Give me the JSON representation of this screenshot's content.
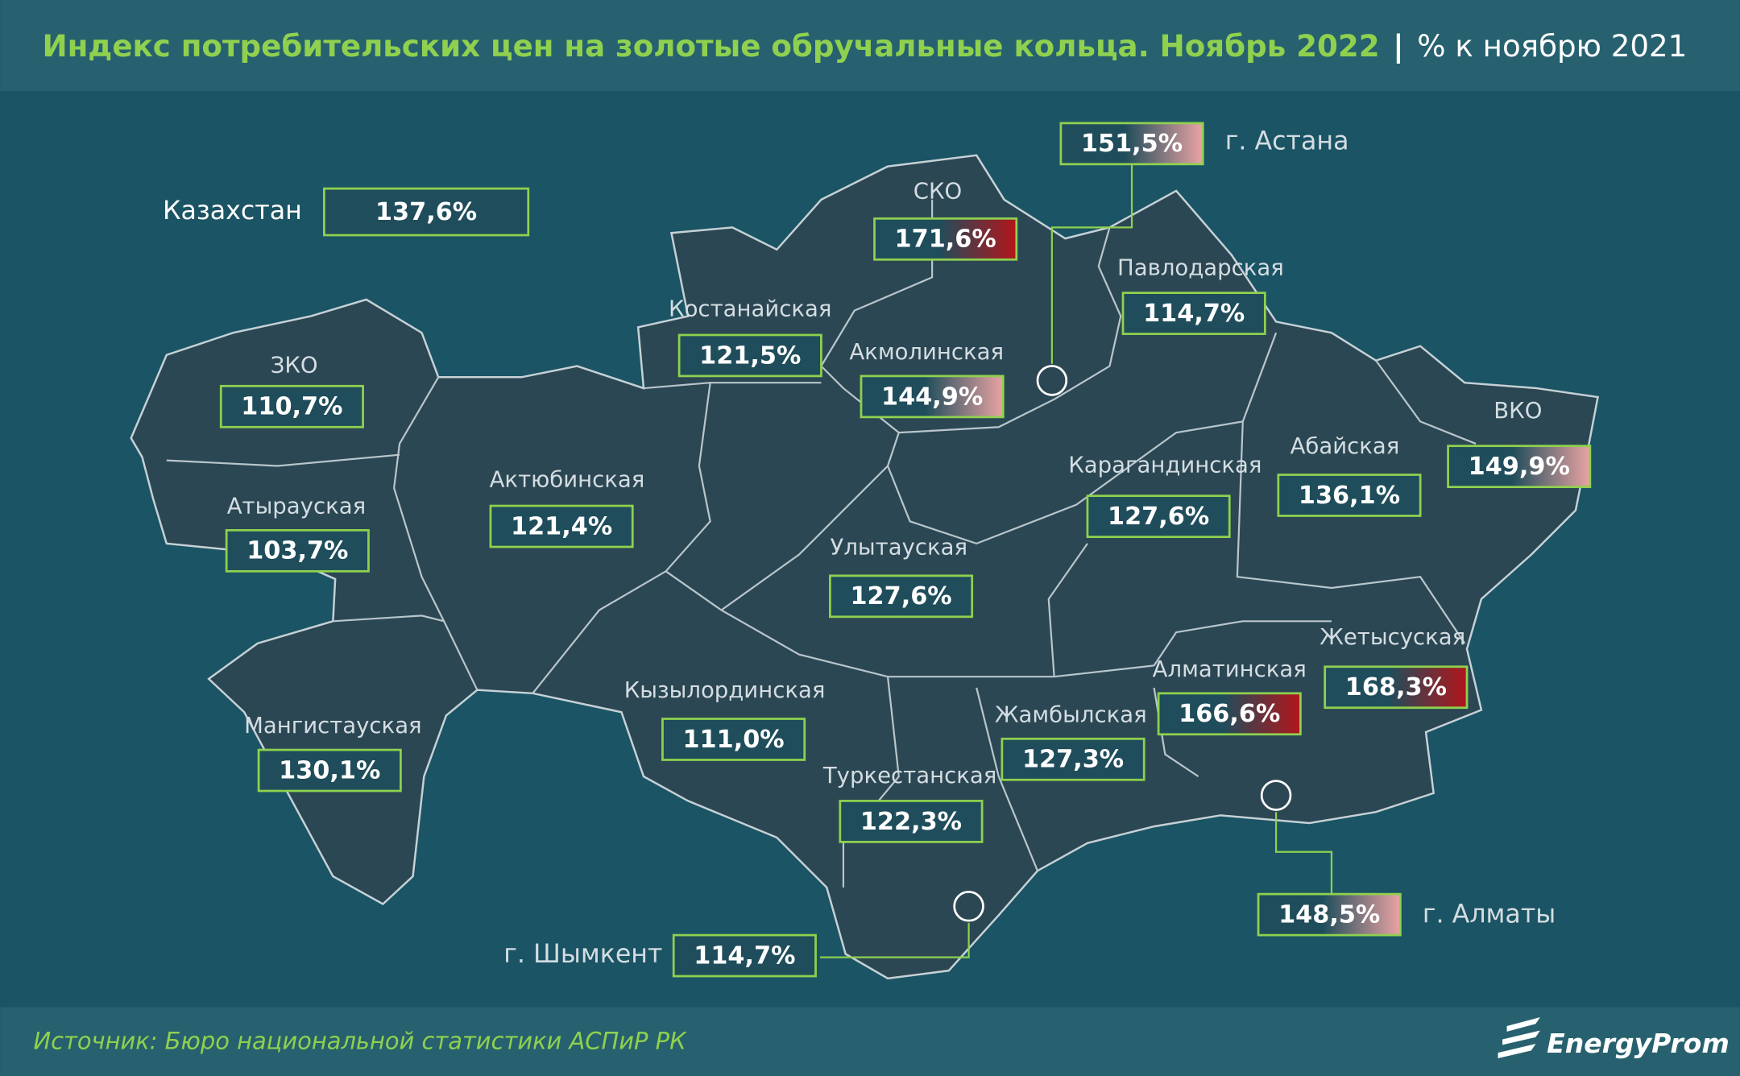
{
  "header": {
    "title": "Индекс потребительских цен на золотые обручальные кольца. Ноябрь 2022",
    "separator": "|",
    "subtitle": "% к ноябрю 2021"
  },
  "total": {
    "name": "Казахстан",
    "value": 137.6,
    "label": "137,6%"
  },
  "regions": [
    {
      "name": "ЗКО",
      "value": 110.7,
      "label": "110,7%"
    },
    {
      "name": "Атырауская",
      "value": 103.7,
      "label": "103,7%"
    },
    {
      "name": "Актюбинская",
      "value": 121.4,
      "label": "121,4%"
    },
    {
      "name": "Мангистауская",
      "value": 130.1,
      "label": "130,1%"
    },
    {
      "name": "Костанайская",
      "value": 121.5,
      "label": "121,5%"
    },
    {
      "name": "СКО",
      "value": 171.6,
      "label": "171,6%"
    },
    {
      "name": "Акмолинская",
      "value": 144.9,
      "label": "144,9%"
    },
    {
      "name": "г. Астана",
      "value": 151.5,
      "label": "151,5%"
    },
    {
      "name": "Павлодарская",
      "value": 114.7,
      "label": "114,7%"
    },
    {
      "name": "Абайская",
      "value": 136.1,
      "label": "136,1%"
    },
    {
      "name": "ВКО",
      "value": 149.9,
      "label": "149,9%"
    },
    {
      "name": "Карагандинская",
      "value": 127.6,
      "label": "127,6%"
    },
    {
      "name": "Улытауская",
      "value": 127.6,
      "label": "127,6%"
    },
    {
      "name": "Кызылординская",
      "value": 111.0,
      "label": "111,0%"
    },
    {
      "name": "Жамбылская",
      "value": 127.3,
      "label": "127,3%"
    },
    {
      "name": "Туркестанская",
      "value": 122.3,
      "label": "122,3%"
    },
    {
      "name": "Алматинская",
      "value": 166.6,
      "label": "166,6%"
    },
    {
      "name": "Жетысуская",
      "value": 168.3,
      "label": "168,3%"
    },
    {
      "name": "г. Алматы",
      "value": 148.5,
      "label": "148,5%"
    },
    {
      "name": "г. Шымкент",
      "value": 114.7,
      "label": "114,7%"
    }
  ],
  "footer": {
    "source": "Источник: Бюро национальной статистики АСПиР РК",
    "logo": "EnergyProm"
  }
}
